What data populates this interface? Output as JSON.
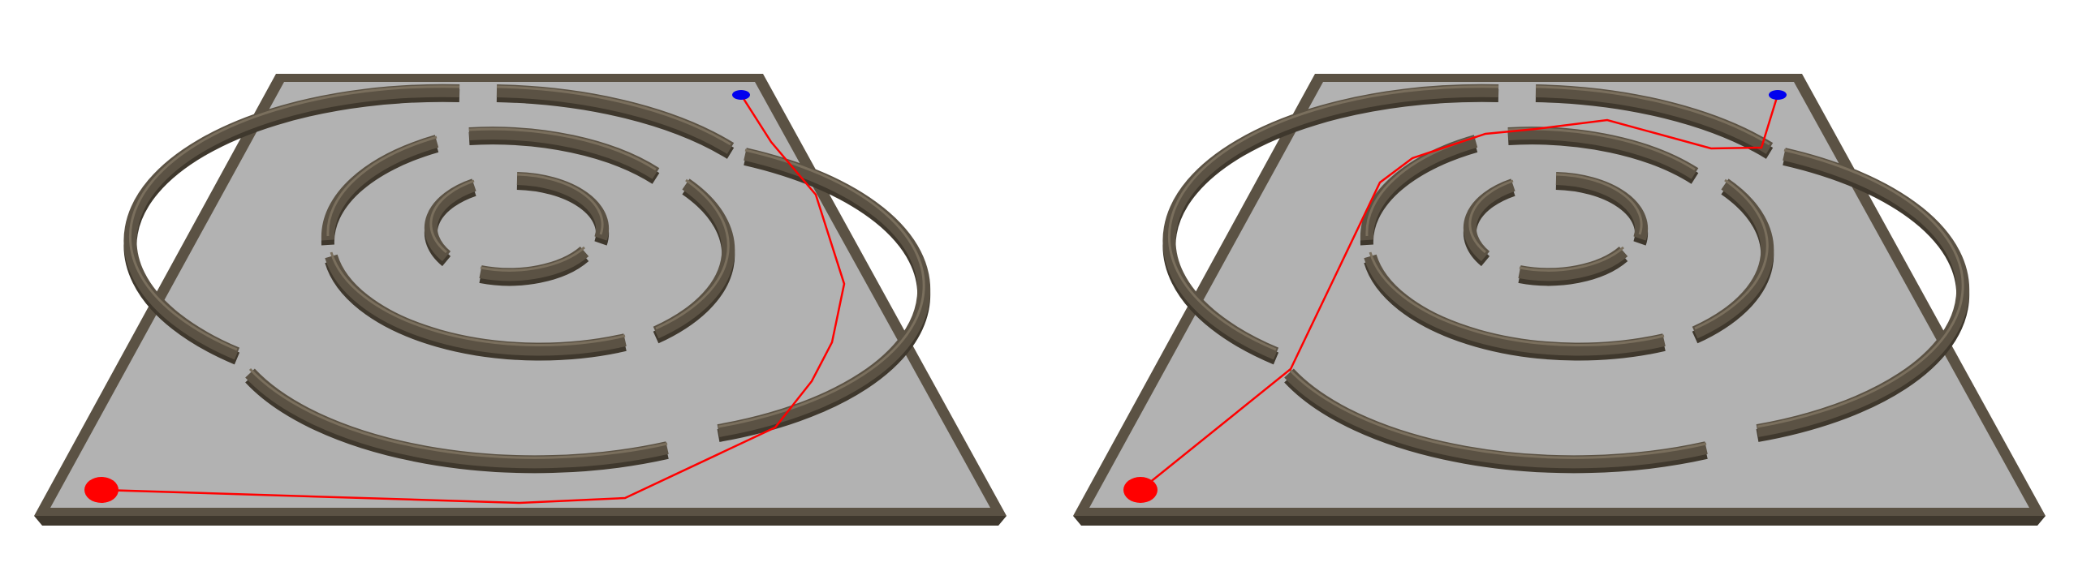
{
  "colors": {
    "background": "#ffffff",
    "floor": "#b2b2b2",
    "wall": "#5b5244",
    "wall_shadow": "#3f382d",
    "path": "#ff0000",
    "start_marker": "#ff0000",
    "goal_marker": "#0000ee"
  },
  "panels": [
    {
      "id": "left",
      "path_kind": "outer-route"
    },
    {
      "id": "right",
      "path_kind": "inner-route"
    }
  ]
}
